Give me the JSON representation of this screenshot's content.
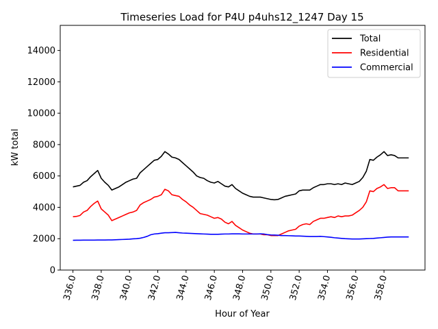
{
  "chart_data": {
    "type": "line",
    "title": "Timeseries Load for P4U p4uhs12_1247  Day 15",
    "xlabel": "Hour of Year",
    "ylabel": "kW total",
    "xlim": [
      335.1,
      360.9
    ],
    "ylim": [
      0,
      15600
    ],
    "xticks": [
      336,
      338,
      340,
      342,
      344,
      346,
      348,
      350,
      352,
      354,
      356,
      358
    ],
    "xtick_labels": [
      "336.0",
      "338.0",
      "340.0",
      "342.0",
      "344.0",
      "346.0",
      "348.0",
      "350.0",
      "352.0",
      "354.0",
      "356.0",
      "358.0"
    ],
    "yticks": [
      0,
      2000,
      4000,
      6000,
      8000,
      10000,
      12000,
      14000
    ],
    "ytick_labels": [
      "0",
      "2000",
      "4000",
      "6000",
      "8000",
      "10000",
      "12000",
      "14000"
    ],
    "grid": false,
    "legend_position": "top-right",
    "x": [
      336.0,
      336.25,
      336.5,
      336.75,
      337.0,
      337.25,
      337.5,
      337.75,
      338.0,
      338.25,
      338.5,
      338.75,
      339.0,
      339.25,
      339.5,
      339.75,
      340.0,
      340.25,
      340.5,
      340.75,
      341.0,
      341.25,
      341.5,
      341.75,
      342.0,
      342.25,
      342.5,
      342.75,
      343.0,
      343.25,
      343.5,
      343.75,
      344.0,
      344.25,
      344.5,
      344.75,
      345.0,
      345.25,
      345.5,
      345.75,
      346.0,
      346.25,
      346.5,
      346.75,
      347.0,
      347.25,
      347.5,
      347.75,
      348.0,
      348.25,
      348.5,
      348.75,
      349.0,
      349.25,
      349.5,
      349.75,
      350.0,
      350.25,
      350.5,
      350.75,
      351.0,
      351.25,
      351.5,
      351.75,
      352.0,
      352.25,
      352.5,
      352.75,
      353.0,
      353.25,
      353.5,
      353.75,
      354.0,
      354.25,
      354.5,
      354.75,
      355.0,
      355.25,
      355.5,
      355.75,
      356.0,
      356.25,
      356.5,
      356.75,
      357.0,
      357.25,
      357.5,
      357.75,
      358.0,
      358.25,
      358.5,
      358.75,
      359.0,
      359.25,
      359.5,
      359.75
    ],
    "series": [
      {
        "name": "Total",
        "color": "#000000",
        "values": [
          5300,
          5350,
          5400,
          5600,
          5700,
          5950,
          6150,
          6350,
          5850,
          5600,
          5400,
          5100,
          5200,
          5300,
          5450,
          5600,
          5700,
          5800,
          5850,
          6200,
          6400,
          6600,
          6800,
          7000,
          7050,
          7250,
          7550,
          7400,
          7200,
          7150,
          7050,
          6850,
          6650,
          6450,
          6250,
          6000,
          5900,
          5850,
          5700,
          5600,
          5550,
          5650,
          5500,
          5350,
          5300,
          5450,
          5200,
          5050,
          4900,
          4800,
          4700,
          4650,
          4650,
          4650,
          4600,
          4550,
          4500,
          4480,
          4500,
          4600,
          4700,
          4750,
          4800,
          4850,
          5050,
          5100,
          5100,
          5100,
          5250,
          5350,
          5450,
          5450,
          5500,
          5500,
          5450,
          5500,
          5450,
          5550,
          5500,
          5450,
          5550,
          5650,
          5900,
          6300,
          7050,
          7000,
          7200,
          7350,
          7550,
          7300,
          7350,
          7300,
          7150,
          7150,
          7150,
          7150
        ]
      },
      {
        "name": "Residential",
        "color": "#ff0000",
        "values": [
          3400,
          3420,
          3480,
          3700,
          3800,
          4050,
          4250,
          4400,
          3900,
          3700,
          3500,
          3150,
          3250,
          3350,
          3450,
          3550,
          3650,
          3700,
          3800,
          4150,
          4300,
          4400,
          4500,
          4650,
          4700,
          4800,
          5150,
          5050,
          4800,
          4750,
          4700,
          4500,
          4350,
          4150,
          4000,
          3800,
          3600,
          3550,
          3500,
          3400,
          3300,
          3350,
          3250,
          3050,
          2950,
          3100,
          2850,
          2700,
          2550,
          2450,
          2350,
          2300,
          2300,
          2300,
          2250,
          2250,
          2200,
          2200,
          2200,
          2300,
          2400,
          2500,
          2550,
          2600,
          2800,
          2900,
          2950,
          2900,
          3100,
          3200,
          3300,
          3300,
          3350,
          3400,
          3350,
          3450,
          3400,
          3450,
          3450,
          3500,
          3650,
          3800,
          4000,
          4350,
          5050,
          5000,
          5200,
          5300,
          5450,
          5200,
          5250,
          5250,
          5050,
          5050,
          5050,
          5050
        ]
      },
      {
        "name": "Commercial",
        "color": "#0000ff",
        "values": [
          1900,
          1905,
          1905,
          1910,
          1910,
          1910,
          1910,
          1915,
          1915,
          1915,
          1920,
          1920,
          1930,
          1940,
          1950,
          1960,
          1970,
          1990,
          2000,
          2030,
          2080,
          2150,
          2250,
          2300,
          2320,
          2350,
          2380,
          2380,
          2390,
          2400,
          2380,
          2360,
          2350,
          2340,
          2330,
          2320,
          2310,
          2300,
          2290,
          2280,
          2280,
          2280,
          2290,
          2300,
          2300,
          2310,
          2310,
          2310,
          2300,
          2300,
          2300,
          2300,
          2300,
          2310,
          2300,
          2260,
          2240,
          2230,
          2220,
          2200,
          2200,
          2190,
          2180,
          2170,
          2170,
          2160,
          2150,
          2140,
          2140,
          2140,
          2150,
          2130,
          2110,
          2090,
          2060,
          2040,
          2020,
          2000,
          1990,
          1980,
          1980,
          1980,
          1990,
          2000,
          2010,
          2020,
          2040,
          2060,
          2080,
          2100,
          2110,
          2110,
          2110,
          2110,
          2110,
          2110
        ]
      }
    ]
  }
}
